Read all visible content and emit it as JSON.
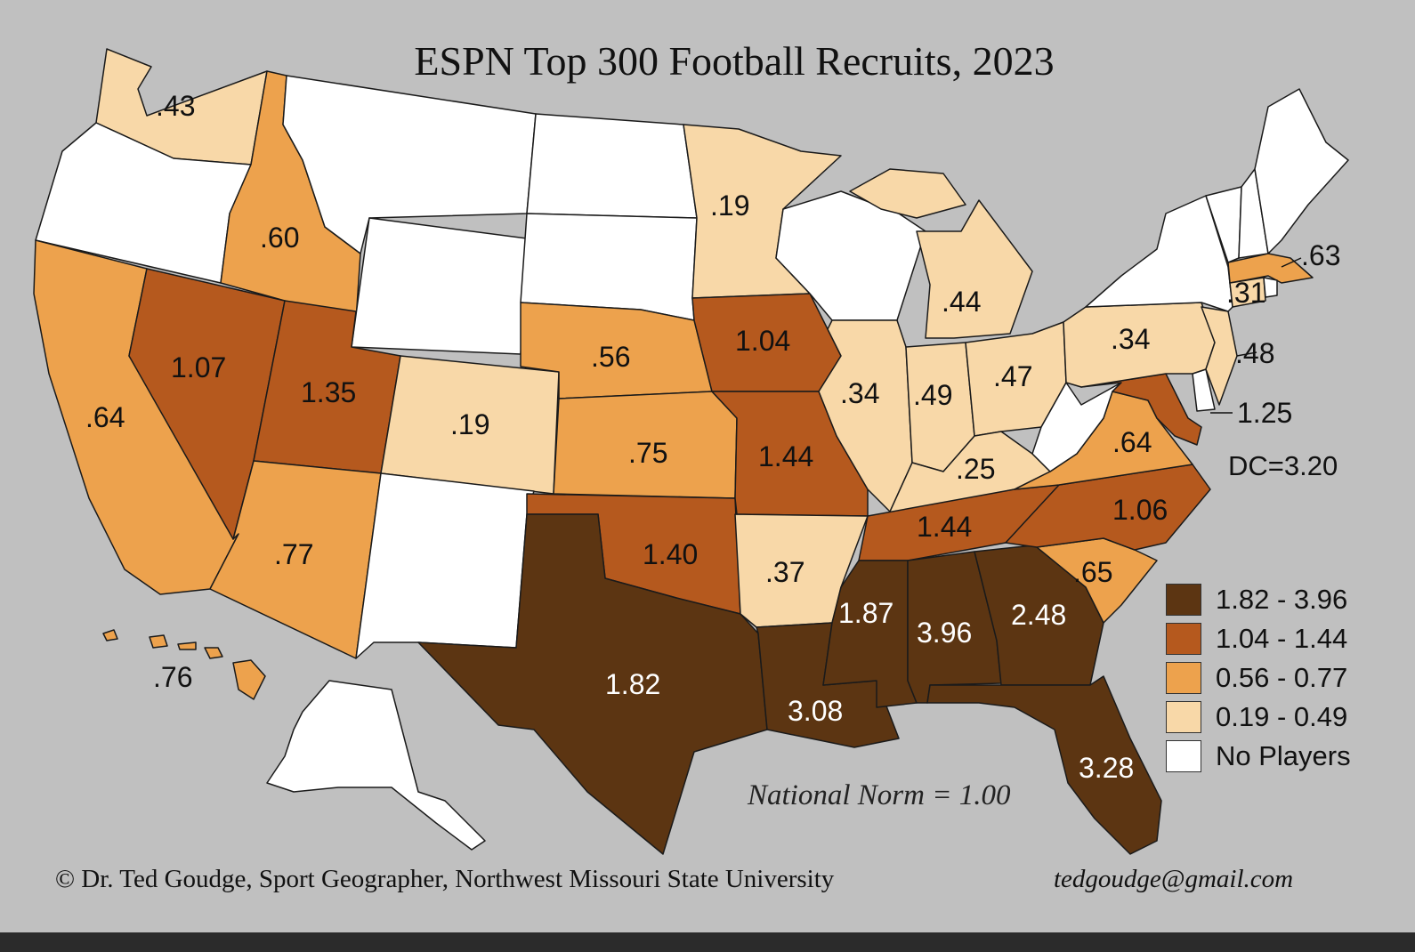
{
  "title": "ESPN Top 300 Football Recruits, 2023",
  "note": "National Norm = 1.00",
  "credit": "© Dr. Ted Goudge, Sport Geographer, Northwest Missouri State University",
  "email": "tedgoudge@gmail.com",
  "dc_label": "DC=3.20",
  "colors": {
    "c4": "#5c3512",
    "c3": "#b5591e",
    "c2": "#eda24d",
    "c1": "#f8d8a8",
    "c0": "#ffffff",
    "background": "#c0c0c0"
  },
  "legend": [
    {
      "label": "1.82 - 3.96",
      "color": "#5c3512"
    },
    {
      "label": "1.04 - 1.44",
      "color": "#b5591e"
    },
    {
      "label": "0.56 - 0.77",
      "color": "#eda24d"
    },
    {
      "label": "0.19 - 0.49",
      "color": "#f8d8a8"
    },
    {
      "label": "No Players",
      "color": "#ffffff"
    }
  ],
  "labels": {
    "wa": ".43",
    "id": ".60",
    "ca": ".64",
    "nv": "1.07",
    "ut": "1.35",
    "co": ".19",
    "az": ".77",
    "mn": ".19",
    "ne": ".56",
    "ks": ".75",
    "ia": "1.04",
    "mo": "1.44",
    "ok": "1.40",
    "tx": "1.82",
    "ar": ".37",
    "la": "3.08",
    "ms": "1.87",
    "al": "3.96",
    "ga": "2.48",
    "fl": "3.28",
    "tn": "1.44",
    "ky": ".25",
    "il": ".34",
    "in": ".49",
    "oh": ".47",
    "mi": ".44",
    "pa": ".34",
    "nj": ".48",
    "md": "1.25",
    "va": ".64",
    "nc": "1.06",
    "sc": ".65",
    "ma": ".63",
    "ct": ".31",
    "hi": ".76"
  }
}
